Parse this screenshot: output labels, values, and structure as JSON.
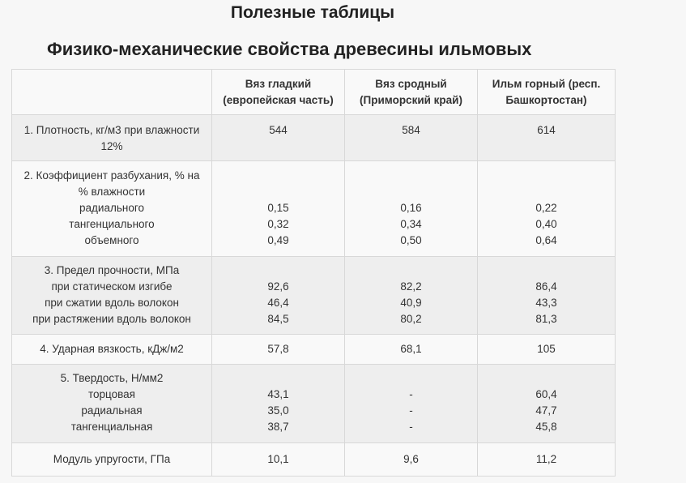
{
  "page": {
    "title": "Полезные таблицы",
    "table_title": "Физико-механические свойства древесины ильмовых"
  },
  "table": {
    "columns": [
      [
        "Вяз гладкий",
        "(европейская часть)"
      ],
      [
        "Вяз сродный",
        "(Приморский край)"
      ],
      [
        "Ильм горный (респ.",
        "Башкортостан)"
      ]
    ],
    "rows": [
      {
        "label": [
          "1. Плотность, кг/м3 при влажности",
          "12%"
        ],
        "values": [
          [
            "544"
          ],
          [
            "584"
          ],
          [
            "614"
          ]
        ]
      },
      {
        "label": [
          "2. Коэффициент разбухания, % на",
          "% влажности",
          "радиального",
          "тангенциального",
          "объемного"
        ],
        "values": [
          [
            "",
            "",
            "0,15",
            "0,32",
            "0,49"
          ],
          [
            "",
            "",
            "0,16",
            "0,34",
            "0,50"
          ],
          [
            "",
            "",
            "0,22",
            "0,40",
            "0,64"
          ]
        ]
      },
      {
        "label": [
          "3. Предел прочности, МПа",
          "при статическом изгибе",
          "при сжатии вдоль волокон",
          "при растяжении вдоль волокон"
        ],
        "values": [
          [
            "",
            "92,6",
            "46,4",
            "84,5"
          ],
          [
            "",
            "82,2",
            "40,9",
            "80,2"
          ],
          [
            "",
            "86,4",
            "43,3",
            "81,3"
          ]
        ]
      },
      {
        "label": [
          "4. Ударная вязкость, кДж/м2"
        ],
        "values": [
          [
            "57,8"
          ],
          [
            "68,1"
          ],
          [
            "105"
          ]
        ]
      },
      {
        "label": [
          "5. Твердость, Н/мм2",
          "торцовая",
          "радиальная",
          "тангенциальная"
        ],
        "values": [
          [
            "",
            "43,1",
            "35,0",
            "38,7"
          ],
          [
            "",
            "-",
            "-",
            "-"
          ],
          [
            "",
            "60,4",
            "47,7",
            "45,8"
          ]
        ]
      },
      {
        "label": [
          "Модуль упругости, ГПа"
        ],
        "values": [
          [
            "10,1"
          ],
          [
            "9,6"
          ],
          [
            "11,2"
          ]
        ]
      }
    ]
  }
}
